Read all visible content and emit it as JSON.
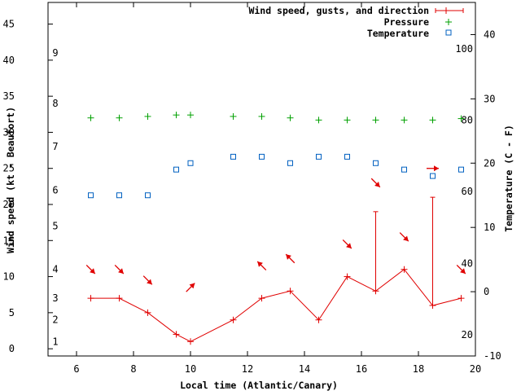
{
  "chart_data": {
    "type": "line",
    "xlabel": "Local time (Atlantic/Canary)",
    "ylabel": "Wind speed (kt - Beaufort)",
    "y2label": "Temperature (C - F)",
    "xlim": [
      5,
      20
    ],
    "ylim": [
      -1,
      48
    ],
    "y2lim": [
      -10,
      45
    ],
    "x_ticks": [
      6,
      8,
      10,
      12,
      14,
      16,
      18,
      20
    ],
    "y_ticks": [
      0,
      5,
      10,
      15,
      20,
      25,
      30,
      35,
      40,
      45
    ],
    "y2_ticks": [
      -10,
      0,
      10,
      20,
      30,
      40
    ],
    "beaufort_labels": [
      {
        "label": "1",
        "kt": 1
      },
      {
        "label": "2",
        "kt": 4
      },
      {
        "label": "3",
        "kt": 7
      },
      {
        "label": "4",
        "kt": 11
      },
      {
        "label": "5",
        "kt": 17
      },
      {
        "label": "6",
        "kt": 22
      },
      {
        "label": "7",
        "kt": 28
      },
      {
        "label": "8",
        "kt": 34
      },
      {
        "label": "9",
        "kt": 41
      }
    ],
    "fahrenheit_labels": [
      {
        "label": "20",
        "c": -6.7
      },
      {
        "label": "40",
        "c": 4.4
      },
      {
        "label": "60",
        "c": 15.6
      },
      {
        "label": "80",
        "c": 26.7
      },
      {
        "label": "100",
        "c": 37.8
      }
    ],
    "legend": {
      "position": "top-right",
      "entries": [
        "Wind speed, gusts, and direction",
        "Pressure",
        "Temperature"
      ]
    },
    "colors": {
      "wind": "#e00000",
      "pressure": "#00a000",
      "temperature": "#0060c0",
      "axis": "#000000"
    },
    "series": [
      {
        "name": "Wind speed",
        "x": [
          6.5,
          7.5,
          8.5,
          9.5,
          10,
          11.5,
          12.5,
          13.5,
          14.5,
          15.5,
          16.5,
          17.5,
          18.5,
          19.5
        ],
        "values": [
          7,
          7,
          5,
          2,
          1,
          4,
          7,
          8,
          4,
          10,
          8,
          11,
          6,
          7
        ]
      },
      {
        "name": "Gusts",
        "x": [
          16.5,
          18.5
        ],
        "values": [
          19,
          21
        ]
      },
      {
        "name": "Wind direction arrows",
        "x": [
          6.5,
          7.5,
          8.5,
          10,
          12.5,
          13.5,
          15.5,
          16.5,
          17.5,
          18.5,
          19.5
        ],
        "y": [
          11,
          11,
          9.5,
          8.5,
          11.5,
          12.5,
          14.5,
          23,
          15.5,
          25,
          11
        ],
        "direction_to_deg": [
          135,
          135,
          135,
          45,
          315,
          315,
          135,
          135,
          135,
          90,
          135
        ]
      },
      {
        "name": "Pressure",
        "x": [
          6.5,
          7.5,
          8.5,
          9.5,
          10,
          11.5,
          12.5,
          13.5,
          14.5,
          15.5,
          16.5,
          17.5,
          18.5,
          19.5
        ],
        "values": [
          32,
          32,
          32.2,
          32.4,
          32.4,
          32.2,
          32.2,
          32,
          31.7,
          31.7,
          31.7,
          31.7,
          31.7,
          31.9
        ]
      },
      {
        "name": "Temperature",
        "x": [
          6.5,
          7.5,
          8.5,
          9.5,
          10,
          11.5,
          12.5,
          13.5,
          14.5,
          15.5,
          16.5,
          17.5,
          18.5,
          19.5
        ],
        "values": [
          15,
          15,
          15,
          19,
          20,
          21,
          21,
          20,
          21,
          21,
          20,
          19,
          18,
          19
        ]
      }
    ]
  }
}
